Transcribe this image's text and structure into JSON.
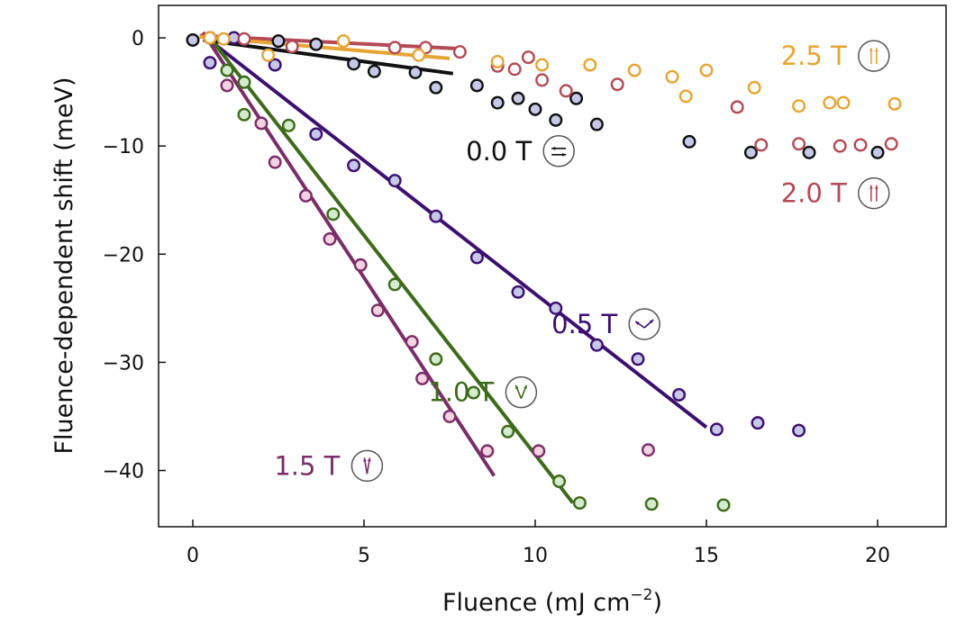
{
  "chart_data": {
    "type": "scatter",
    "xlabel": "Fluence (mJ cm",
    "xlabel_sup": "−2",
    "xlabel_end": ")",
    "ylabel": "Fluence-dependent shift (meV)",
    "xlim": [
      -1,
      22
    ],
    "ylim": [
      -45.2,
      3
    ],
    "x_ticks": [
      0,
      5,
      10,
      15,
      20
    ],
    "x_tick_labels": [
      "0",
      "5",
      "10",
      "15",
      "20"
    ],
    "y_ticks": [
      0,
      -10,
      -20,
      -30,
      -40
    ],
    "y_tick_labels": [
      "0",
      "−10",
      "−20",
      "−30",
      "−40"
    ],
    "grid": false,
    "legend": "none (labels placed next to series)",
    "series": [
      {
        "name": "0.0 T",
        "icon": "antiparallel-arrows-icon",
        "edge_color": "#111111",
        "fill_color": "#c7c8e8",
        "line_color": "#111111",
        "fit": [
          [
            0.3,
            -0.2
          ],
          [
            7.6,
            -3.3
          ]
        ],
        "x": [
          0.0,
          0.5,
          2.5,
          3.6,
          4.7,
          5.3,
          6.5,
          7.1,
          8.3,
          8.9,
          9.5,
          10.0,
          10.6,
          11.2,
          11.8,
          14.5,
          16.3,
          18.0,
          20.0
        ],
        "y": [
          -0.2,
          0.0,
          -0.3,
          -0.6,
          -2.4,
          -3.1,
          -3.2,
          -4.6,
          -4.4,
          -6.0,
          -5.6,
          -6.6,
          -7.6,
          -5.6,
          -8.0,
          -9.6,
          -10.6,
          -10.6,
          -10.6
        ]
      },
      {
        "name": "0.5 T",
        "icon": "canted-arrows-icon",
        "edge_color": "#3b1070",
        "fill_color": "#c7c8e8",
        "line_color": "#3b1070",
        "fit": [
          [
            0.4,
            0.0
          ],
          [
            15.0,
            -36.0
          ]
        ],
        "x": [
          0.5,
          1.2,
          2.4,
          3.6,
          4.7,
          5.9,
          7.1,
          8.3,
          9.5,
          10.6,
          11.8,
          13.0,
          14.2,
          15.3,
          16.5,
          17.7
        ],
        "y": [
          -2.3,
          0.0,
          -2.5,
          -8.9,
          -11.8,
          -13.2,
          -16.5,
          -20.3,
          -23.5,
          -25.0,
          -28.4,
          -29.7,
          -33.0,
          -36.2,
          -35.6,
          -36.3
        ]
      },
      {
        "name": "1.0 T",
        "icon": "v-arrows-icon",
        "edge_color": "#3e6b1b",
        "fill_color": "#d3eccf",
        "line_color": "#3e6b1b",
        "fit": [
          [
            0.5,
            0.0
          ],
          [
            11.1,
            -43.0
          ]
        ],
        "x": [
          1.0,
          1.5,
          1.5,
          2.8,
          4.1,
          5.9,
          7.1,
          8.2,
          9.2,
          10.7,
          11.3,
          13.4,
          15.5
        ],
        "y": [
          -3.0,
          -4.1,
          -7.1,
          -8.1,
          -16.3,
          -22.8,
          -29.7,
          -32.8,
          -36.4,
          -41.0,
          -43.0,
          -43.1,
          -43.2
        ]
      },
      {
        "name": "1.5 T",
        "icon": "narrow-v-arrows-icon",
        "edge_color": "#7a2e68",
        "fill_color": "#f3d3e2",
        "line_color": "#7a2e68",
        "fit": [
          [
            0.3,
            0.5
          ],
          [
            8.8,
            -40.5
          ]
        ],
        "x": [
          1.0,
          2.0,
          2.4,
          3.3,
          4.0,
          4.9,
          5.4,
          6.4,
          6.7,
          7.5,
          8.6,
          10.1,
          13.3
        ],
        "y": [
          -4.4,
          -7.9,
          -11.5,
          -14.6,
          -18.6,
          -21.0,
          -25.2,
          -28.1,
          -31.5,
          -35.0,
          -38.2,
          -38.2,
          -38.1
        ]
      },
      {
        "name": "2.0 T",
        "icon": "parallel-arrows-icon",
        "edge_color": "#b44a55",
        "fill_color": "#ffffff",
        "line_color": "#b44a55",
        "fit": [
          [
            0.2,
            0.2
          ],
          [
            7.8,
            -1.0
          ]
        ],
        "x": [
          0.5,
          1.5,
          2.9,
          5.9,
          6.8,
          7.8,
          8.9,
          9.4,
          9.8,
          10.2,
          10.9,
          12.4,
          15.9,
          16.6,
          17.7,
          18.9,
          19.5,
          20.4
        ],
        "y": [
          0.0,
          -0.1,
          -0.8,
          -0.9,
          -0.9,
          -1.3,
          -2.6,
          -2.9,
          -1.8,
          -3.9,
          -4.9,
          -4.3,
          -6.4,
          -9.9,
          -9.8,
          -10.0,
          -9.9,
          -9.8
        ]
      },
      {
        "name": "2.5 T",
        "icon": "parallel-arrows-icon",
        "edge_color": "#e6a535",
        "fill_color": "#ffffff",
        "line_color": "#e6a535",
        "fit": [
          [
            0.2,
            0.1
          ],
          [
            7.5,
            -1.9
          ]
        ],
        "x": [
          0.5,
          0.9,
          2.2,
          4.4,
          6.6,
          8.9,
          10.2,
          11.6,
          12.9,
          14.0,
          14.4,
          15.0,
          16.4,
          17.7,
          18.6,
          19.0,
          20.5
        ],
        "y": [
          0.0,
          -0.1,
          -1.6,
          -0.3,
          -1.6,
          -2.2,
          -2.5,
          -2.5,
          -3.0,
          -3.6,
          -5.4,
          -3.0,
          -4.6,
          -6.3,
          -6.0,
          -6.0,
          -6.1
        ]
      }
    ],
    "annotations": [
      {
        "series": "0.0 T",
        "x": 9.9,
        "y": -11.3,
        "text": "0.0 T",
        "color": "#111111",
        "icon": "antiparallel-arrows-icon"
      },
      {
        "series": "0.5 T",
        "x": 12.4,
        "y": -27.3,
        "text": "0.5 T",
        "color": "#3b1070",
        "icon": "canted-arrows-icon"
      },
      {
        "series": "1.0 T",
        "x": 8.8,
        "y": -33.6,
        "text": "1.0 T",
        "color": "#3e6b1b",
        "icon": "v-arrows-icon"
      },
      {
        "series": "1.5 T",
        "x": 4.3,
        "y": -40.4,
        "text": "1.5 T",
        "color": "#7a2e68",
        "icon": "narrow-v-arrows-icon"
      },
      {
        "series": "2.0 T",
        "x": 19.1,
        "y": -15.2,
        "text": "2.0 T",
        "color": "#b44a55",
        "icon": "parallel-arrows-icon"
      },
      {
        "series": "2.5 T",
        "x": 19.1,
        "y": -2.5,
        "text": "2.5 T",
        "color": "#e6a535",
        "icon": "parallel-arrows-icon"
      }
    ]
  }
}
